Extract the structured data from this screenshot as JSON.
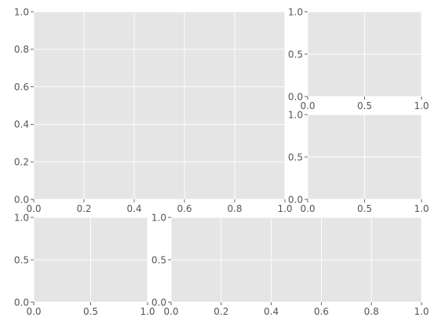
{
  "figure": {
    "style": "ggplot",
    "axes_facecolor": "#e5e5e5",
    "grid_color": "#ffffff",
    "tick_label_color": "#555555"
  },
  "chart_data": [
    {
      "type": "line",
      "name": "panel-large-top-left",
      "x": [],
      "y": [],
      "xlim": [
        0,
        1
      ],
      "ylim": [
        0,
        1
      ],
      "xticks": [
        0.0,
        0.2,
        0.4,
        0.6,
        0.8,
        1.0
      ],
      "yticks": [
        0.0,
        0.2,
        0.4,
        0.6,
        0.8,
        1.0
      ],
      "xticklabels": [
        "0.0",
        "0.2",
        "0.4",
        "0.6",
        "0.8",
        "1.0"
      ],
      "yticklabels": [
        "0.0",
        "0.2",
        "0.4",
        "0.6",
        "0.8",
        "1.0"
      ],
      "grid": true
    },
    {
      "type": "line",
      "name": "panel-small-top-right",
      "x": [],
      "y": [],
      "xlim": [
        0,
        1
      ],
      "ylim": [
        0,
        1
      ],
      "xticks": [
        0.0,
        0.5,
        1.0
      ],
      "yticks": [
        0.0,
        0.5,
        1.0
      ],
      "xticklabels": [
        "0.0",
        "0.5",
        "1.0"
      ],
      "yticklabels": [
        "0.0",
        "0.5",
        "1.0"
      ],
      "grid": true
    },
    {
      "type": "line",
      "name": "panel-small-middle-right",
      "x": [],
      "y": [],
      "xlim": [
        0,
        1
      ],
      "ylim": [
        0,
        1
      ],
      "xticks": [
        0.0,
        0.5,
        1.0
      ],
      "yticks": [
        0.0,
        0.5,
        1.0
      ],
      "xticklabels": [
        "0.0",
        "0.5",
        "1.0"
      ],
      "yticklabels": [
        "0.0",
        "0.5",
        "1.0"
      ],
      "grid": true
    },
    {
      "type": "line",
      "name": "panel-bottom-left",
      "x": [],
      "y": [],
      "xlim": [
        0,
        1
      ],
      "ylim": [
        0,
        1
      ],
      "xticks": [
        0.0,
        0.5,
        1.0
      ],
      "yticks": [
        0.0,
        0.5,
        1.0
      ],
      "xticklabels": [
        "0.0",
        "0.5",
        "1.0"
      ],
      "yticklabels": [
        "0.0",
        "0.5",
        "1.0"
      ],
      "grid": true
    },
    {
      "type": "line",
      "name": "panel-bottom-right",
      "x": [],
      "y": [],
      "xlim": [
        0,
        1
      ],
      "ylim": [
        0,
        1
      ],
      "xticks": [
        0.0,
        0.2,
        0.4,
        0.6,
        0.8,
        1.0
      ],
      "yticks": [
        0.0,
        0.5,
        1.0
      ],
      "xticklabels": [
        "0.0",
        "0.2",
        "0.4",
        "0.6",
        "0.8",
        "1.0"
      ],
      "yticklabels": [
        "0.0",
        "0.5",
        "1.0"
      ],
      "grid": true
    }
  ]
}
